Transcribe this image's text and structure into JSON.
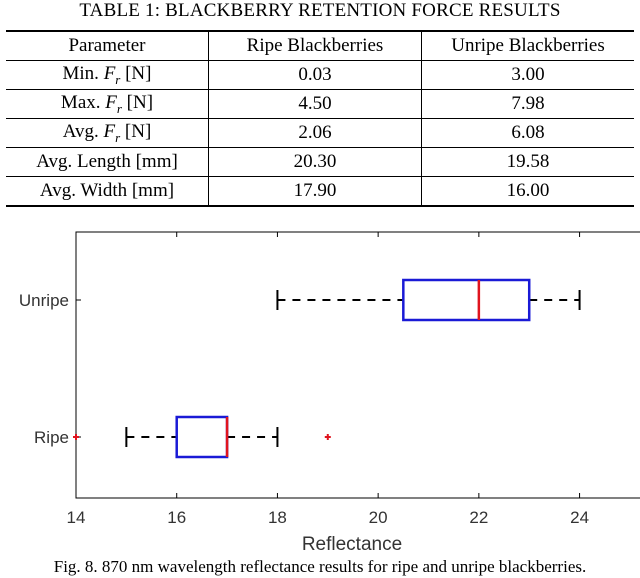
{
  "table": {
    "title": "TABLE 1: BLACKBERRY RETENTION FORCE RESULTS",
    "headers": [
      "Parameter",
      "Ripe Blackberries",
      "Unripe Blackberries"
    ],
    "rows": [
      {
        "param_pre": "Min. ",
        "param_var": "F",
        "param_sub": "r",
        "param_post": " [N]",
        "ripe": "0.03",
        "unripe": "3.00"
      },
      {
        "param_pre": "Max. ",
        "param_var": "F",
        "param_sub": "r",
        "param_post": " [N]",
        "ripe": "4.50",
        "unripe": "7.98"
      },
      {
        "param_pre": "Avg. ",
        "param_var": "F",
        "param_sub": "r",
        "param_post": " [N]",
        "ripe": "2.06",
        "unripe": "6.08"
      },
      {
        "param_pre": "Avg. Length [mm]",
        "param_var": "",
        "param_sub": "",
        "param_post": "",
        "ripe": "20.30",
        "unripe": "19.58"
      },
      {
        "param_pre": "Avg. Width [mm]",
        "param_var": "",
        "param_sub": "",
        "param_post": "",
        "ripe": "17.90",
        "unripe": "16.00"
      }
    ]
  },
  "chart_data": {
    "type": "boxplot",
    "orientation": "horizontal",
    "xlabel": "Reflectance",
    "ylabel": "",
    "xlim": [
      14,
      25.2
    ],
    "xticks": [
      14,
      16,
      18,
      20,
      22,
      24
    ],
    "categories": [
      "Unripe",
      "Ripe"
    ],
    "boxes": [
      {
        "name": "Unripe",
        "whisker_low": 18,
        "q1": 20.5,
        "median": 22,
        "q3": 23,
        "whisker_high": 24,
        "outliers": []
      },
      {
        "name": "Ripe",
        "whisker_low": 15,
        "q1": 16,
        "median": 17,
        "q3": 17,
        "whisker_high": 18,
        "outliers": [
          14,
          19
        ]
      }
    ],
    "colors": {
      "box": "#1a1ad6",
      "median": "#e0141e",
      "outlier": "#e0141e",
      "whisker": "#000000"
    }
  },
  "caption": "Fig. 8. 870 nm wavelength reflectance results for ripe and unripe blackberries."
}
